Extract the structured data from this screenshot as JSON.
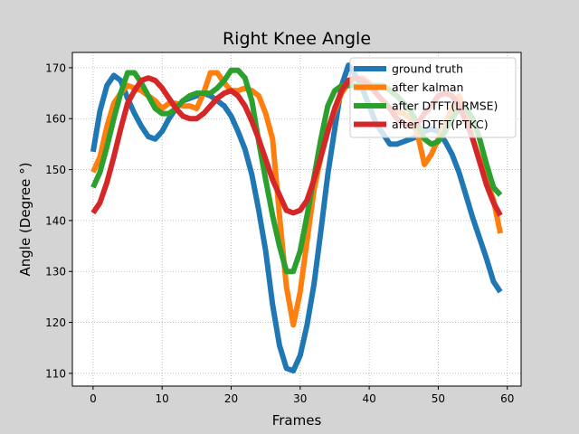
{
  "chart_data": {
    "type": "line",
    "title": "Right Knee Angle",
    "xlabel": "Frames",
    "ylabel": "Angle (Degree °)",
    "xlim": [
      -3,
      62
    ],
    "ylim": [
      107.5,
      173
    ],
    "xticks": [
      0,
      10,
      20,
      30,
      40,
      50,
      60
    ],
    "yticks": [
      110,
      120,
      130,
      140,
      150,
      160,
      170
    ],
    "grid": true,
    "legend_position": "top-right",
    "x": [
      0,
      1,
      2,
      3,
      4,
      5,
      6,
      7,
      8,
      9,
      10,
      11,
      12,
      13,
      14,
      15,
      16,
      17,
      18,
      19,
      20,
      21,
      22,
      23,
      24,
      25,
      26,
      27,
      28,
      29,
      30,
      31,
      32,
      33,
      34,
      35,
      36,
      37,
      38,
      39,
      40,
      41,
      42,
      43,
      44,
      45,
      46,
      47,
      48,
      49,
      50,
      51,
      52,
      53,
      54,
      55,
      56,
      57,
      58,
      59
    ],
    "series": [
      {
        "name": "ground truth",
        "color": "#1f77b4",
        "values": [
          153.5,
          161.5,
          166.5,
          168.5,
          167.5,
          164,
          161,
          158.5,
          156.5,
          156,
          157.5,
          160,
          162,
          163.5,
          164,
          164.5,
          165,
          164.5,
          163.5,
          162.5,
          160.5,
          157.5,
          154,
          149,
          142,
          134,
          123.5,
          115.5,
          111,
          110.5,
          113.5,
          119.5,
          127.5,
          138,
          149,
          158,
          166.5,
          170.5,
          168.5,
          166,
          162.5,
          159,
          157,
          155,
          155,
          155.5,
          156,
          156.5,
          157.5,
          158,
          157.5,
          155.5,
          153,
          149.5,
          145,
          140.5,
          136.5,
          132.5,
          128,
          126
        ]
      },
      {
        "name": "after kalman",
        "color": "#ff7f0e",
        "values": [
          149.5,
          152.5,
          158.5,
          163,
          165,
          166.5,
          166,
          165.5,
          164.5,
          163.5,
          162,
          163,
          163,
          162.5,
          162.5,
          162,
          165,
          169,
          169,
          167,
          165.5,
          165.5,
          166,
          165.5,
          164.5,
          161,
          156,
          141,
          127,
          119.5,
          126,
          136,
          146,
          152.5,
          158,
          161.5,
          165,
          167,
          168,
          168,
          167,
          165,
          163.5,
          162,
          161.5,
          161,
          160,
          157,
          151,
          153,
          156,
          159,
          162,
          164.5,
          161,
          156,
          152,
          148,
          144,
          137.5
        ]
      },
      {
        "name": "after DTFT(LRMSE)",
        "color": "#2ca02c",
        "values": [
          146.5,
          149.5,
          154.5,
          160,
          165,
          169,
          169,
          167,
          164.5,
          162,
          161,
          161,
          162,
          163.5,
          164.5,
          165,
          165,
          165,
          166,
          167.5,
          169.5,
          169.5,
          168,
          163.5,
          155.5,
          148,
          141,
          135,
          130,
          130,
          134,
          141,
          148.5,
          156,
          162.5,
          165.5,
          166.5,
          166.5,
          166.5,
          166.5,
          166.5,
          166.5,
          166.5,
          165.5,
          164.5,
          163,
          161.5,
          159,
          156,
          155,
          155.5,
          157.5,
          160,
          162,
          162,
          160,
          156,
          151,
          146.5,
          145
        ]
      },
      {
        "name": "after DTFT(PTKC)",
        "color": "#d62728",
        "values": [
          141.5,
          143.5,
          147.5,
          152.5,
          158,
          163,
          165.5,
          167.5,
          168,
          167.5,
          166,
          164,
          162,
          160.5,
          160,
          160,
          161,
          162.5,
          164,
          165,
          165.5,
          164.5,
          162.5,
          159.5,
          156,
          152,
          148,
          145,
          142,
          141.5,
          142,
          144,
          148,
          152.5,
          157.5,
          162,
          165.5,
          167.5,
          168,
          167.5,
          166.5,
          165,
          163.5,
          162,
          160,
          159,
          158.5,
          159,
          161,
          162.5,
          164.5,
          165,
          164.5,
          162.5,
          159.5,
          156,
          151.5,
          147,
          143.5,
          141
        ]
      }
    ]
  }
}
